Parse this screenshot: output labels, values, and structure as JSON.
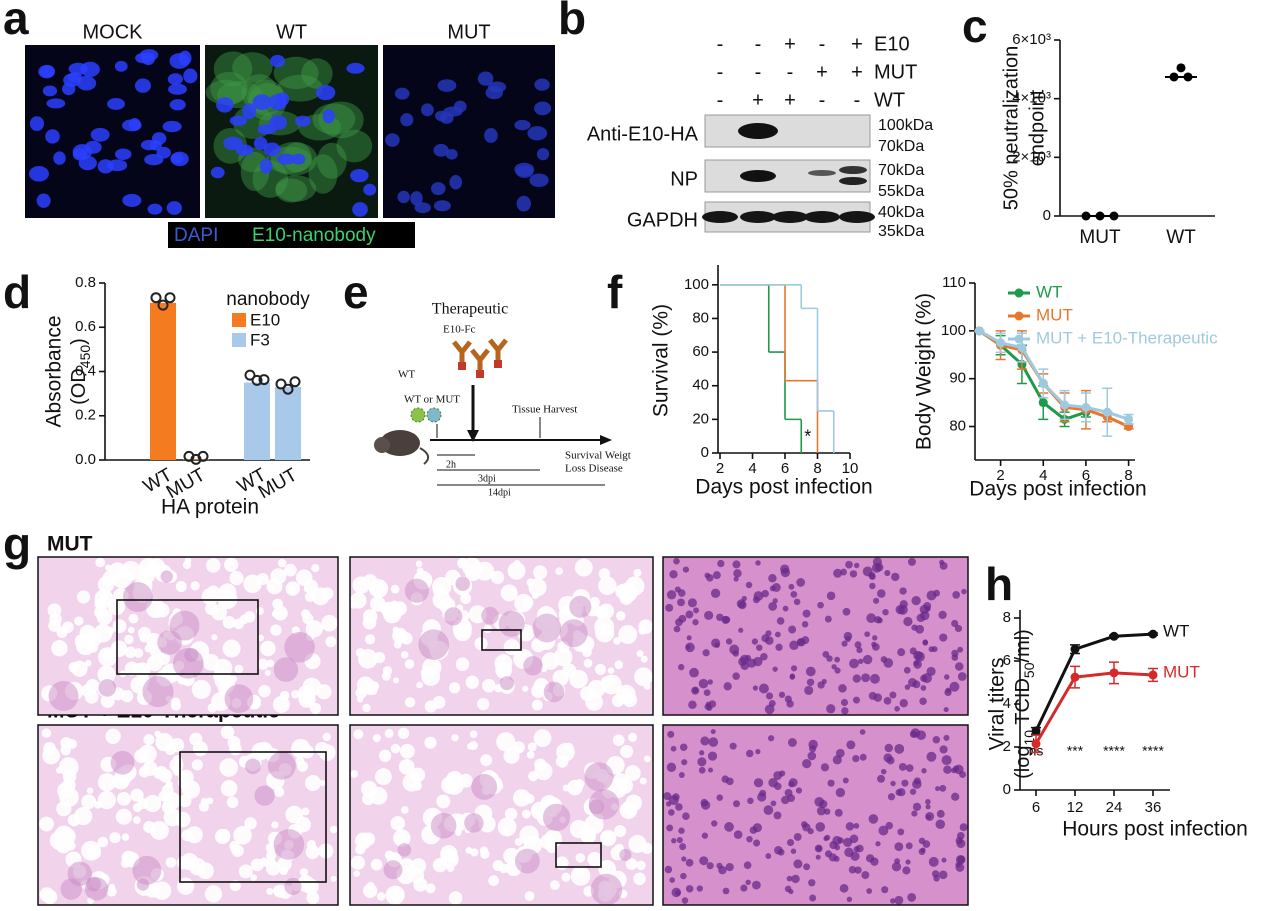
{
  "panel_labels": [
    "a",
    "b",
    "c",
    "d",
    "e",
    "f",
    "g",
    "h"
  ],
  "microscopy": {
    "titles": [
      "MOCK",
      "WT",
      "MUT"
    ],
    "legend": [
      "DAPI",
      "E10-nanobody"
    ]
  },
  "blot": {
    "conditions": [
      {
        "name": "E10",
        "signs": [
          "-",
          "-",
          "+",
          "-",
          "+"
        ]
      },
      {
        "name": "MUT",
        "signs": [
          "-",
          "-",
          "-",
          "+",
          "+"
        ]
      },
      {
        "name": "WT",
        "signs": [
          "-",
          "+",
          "+",
          "-",
          "-"
        ]
      }
    ],
    "rows": [
      {
        "name": "Anti-E10-HA",
        "markers": [
          "100kDa",
          "70kDa"
        ]
      },
      {
        "name": "NP",
        "markers": [
          "70kDa",
          "55kDa"
        ]
      },
      {
        "name": "GAPDH",
        "markers": [
          "40kDa",
          "35kDa"
        ]
      }
    ]
  },
  "schematic": {
    "title": "Therapeutic",
    "antibody": "E10-Fc",
    "pretreat": "WT",
    "infection": "WT or MUT",
    "harvest": "Tissue Harvest",
    "readout": [
      "Survival Weigt",
      "Loss Disease"
    ],
    "timeline": [
      "2h",
      "3dpi",
      "14dpi"
    ]
  },
  "histology": {
    "rows": [
      "MUT",
      "MUT + E10-Therapeutic"
    ]
  },
  "chart_data": [
    {
      "type": "dot",
      "ylabel": [
        "50% neutralization",
        "endpoint"
      ],
      "categories": [
        "MUT",
        "WT"
      ],
      "points": [
        [
          0,
          0,
          0
        ],
        [
          4740,
          5050,
          4740
        ]
      ],
      "medians": [
        0,
        4740
      ],
      "color": "#000000",
      "ylim": [
        0,
        6000
      ],
      "yticks": [
        0,
        {
          "value": 2000,
          "label": "2×10³"
        },
        {
          "value": 4000,
          "label": "4×10³"
        },
        {
          "value": 6000,
          "label": "6×10³"
        }
      ]
    },
    {
      "type": "bar",
      "ylabel": "Absorbance",
      "ylabel2": [
        "(OD",
        "450",
        ")"
      ],
      "xlabel": "HA protein",
      "legend_title": "nanobody",
      "categories": [
        "WT",
        "MUT",
        "WT",
        "MUT"
      ],
      "series": [
        {
          "name": "E10",
          "color": "#f47b20",
          "values": [
            0.71,
            0.003,
            null,
            null
          ],
          "points": [
            [
              0.72,
              0.7,
              0.72
            ],
            [
              0.003,
              0.003,
              0.003
            ],
            null,
            null
          ]
        },
        {
          "name": "F3",
          "color": "#a9c9ea",
          "values": [
            null,
            null,
            0.35,
            0.33
          ],
          "points": [
            null,
            null,
            [
              0.37,
              0.36,
              0.35
            ],
            [
              0.33,
              0.32,
              0.34
            ]
          ]
        }
      ],
      "ylim": [
        0,
        0.8
      ],
      "yticks": [
        {
          "value": 0,
          "label": "0.0"
        },
        0.2,
        0.4,
        0.6,
        0.8
      ]
    },
    {
      "type": "step",
      "ylabel": "Survival (%)",
      "xlabel": "Days post infection",
      "annotation": "*",
      "series": [
        {
          "color": "#1e9a4a",
          "x": [
            2,
            5,
            6,
            7
          ],
          "values": [
            100,
            60,
            20,
            0
          ]
        },
        {
          "color": "#e8772e",
          "x": [
            2,
            6,
            8
          ],
          "values": [
            100,
            43,
            0
          ]
        },
        {
          "color": "#9ecae1",
          "x": [
            2,
            7,
            8,
            9
          ],
          "values": [
            100,
            86,
            25,
            0
          ]
        }
      ],
      "xlim": [
        2,
        10
      ],
      "xticks": [
        2,
        4,
        6,
        8,
        10
      ],
      "ylim": [
        0,
        110
      ],
      "yticks": [
        0,
        20,
        40,
        60,
        80,
        100
      ]
    },
    {
      "type": "line",
      "ylabel": "Body Weight (%)",
      "xlabel": "Days post infection",
      "x": [
        1,
        2,
        3,
        4,
        5,
        6,
        7,
        8
      ],
      "series": [
        {
          "name": "WT",
          "color": "#1e9a4a",
          "values": [
            100,
            97,
            93,
            85,
            81.5,
            83,
            null,
            null
          ],
          "errors": [
            0,
            2,
            4,
            3.5,
            1.5,
            1,
            null,
            null
          ]
        },
        {
          "name": "MUT",
          "color": "#e8772e",
          "values": [
            100,
            97,
            96,
            89,
            84,
            83.5,
            82,
            80
          ],
          "errors": [
            0,
            3,
            4,
            2,
            3,
            4,
            1,
            0.5
          ]
        },
        {
          "name": "MUT + E10-Therapeutic",
          "color": "#9ecae1",
          "values": [
            100,
            97.5,
            96.5,
            89,
            84.5,
            84,
            83,
            81.5
          ],
          "errors": [
            0,
            2,
            3,
            3,
            3,
            3,
            5,
            1
          ]
        }
      ],
      "xlim": [
        0.8,
        8.3
      ],
      "xticks": [
        2,
        4,
        6,
        8
      ],
      "ylim": [
        73,
        110
      ],
      "yticks": [
        80,
        90,
        100,
        110
      ],
      "legend": "upper left"
    },
    {
      "type": "line",
      "ylabel": "Viral titers",
      "ylabel2": [
        "(log",
        "10",
        " TCID",
        "50",
        "/ml)"
      ],
      "xlabel": "Hours post infection",
      "categories": [
        "6",
        "12",
        "24",
        "36"
      ],
      "annotations": [
        "ns",
        "***",
        "****",
        "****"
      ],
      "series": [
        {
          "name": "WT",
          "color": "#111111",
          "values": [
            2.75,
            6.55,
            7.15,
            7.25
          ],
          "errors": [
            0.15,
            0.2,
            0.05,
            0.05
          ]
        },
        {
          "name": "MUT",
          "color": "#d62a2a",
          "values": [
            2.15,
            5.25,
            5.45,
            5.35
          ],
          "errors": [
            0.4,
            0.5,
            0.5,
            0.3
          ]
        }
      ],
      "ylim": [
        0,
        8
      ],
      "yticks": [
        0,
        2,
        4,
        6,
        8
      ],
      "legend": "line end"
    }
  ]
}
